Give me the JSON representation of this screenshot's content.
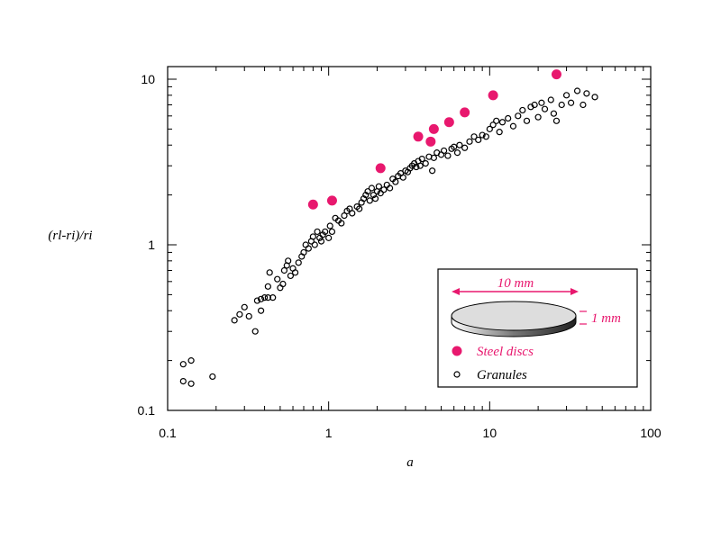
{
  "chart_data": {
    "type": "scatter",
    "title": "",
    "xlabel": "a",
    "ylabel": "(rl-ri)/ri",
    "xscale": "log",
    "yscale": "log",
    "xlim": [
      0.1,
      100
    ],
    "ylim": [
      0.1,
      12
    ],
    "x_tick_labels": [
      "0.1",
      "1",
      "10",
      "100"
    ],
    "y_tick_labels": [
      "0.1",
      "1",
      "10"
    ],
    "legend_position": "bottom-right",
    "inset": {
      "diameter_label": "10 mm",
      "thickness_label": "1 mm"
    },
    "colors": {
      "steel": "#e8186e",
      "granules": "#000000",
      "disc_fill": "#dddddd"
    },
    "series": [
      {
        "name": "Steel discs",
        "marker": "filled-circle",
        "points": [
          [
            0.8,
            1.75
          ],
          [
            1.05,
            1.85
          ],
          [
            2.1,
            2.9
          ],
          [
            3.6,
            4.5
          ],
          [
            4.3,
            4.2
          ],
          [
            4.5,
            5.0
          ],
          [
            5.6,
            5.5
          ],
          [
            7.0,
            6.3
          ],
          [
            10.5,
            8.0
          ],
          [
            26.0,
            10.7
          ]
        ]
      },
      {
        "name": "Granules",
        "marker": "open-circle",
        "points": [
          [
            0.125,
            0.19
          ],
          [
            0.14,
            0.2
          ],
          [
            0.125,
            0.15
          ],
          [
            0.14,
            0.145
          ],
          [
            0.19,
            0.16
          ],
          [
            0.26,
            0.35
          ],
          [
            0.28,
            0.38
          ],
          [
            0.3,
            0.42
          ],
          [
            0.32,
            0.37
          ],
          [
            0.35,
            0.3
          ],
          [
            0.36,
            0.46
          ],
          [
            0.38,
            0.47
          ],
          [
            0.38,
            0.4
          ],
          [
            0.4,
            0.48
          ],
          [
            0.42,
            0.56
          ],
          [
            0.42,
            0.48
          ],
          [
            0.43,
            0.68
          ],
          [
            0.45,
            0.48
          ],
          [
            0.48,
            0.62
          ],
          [
            0.5,
            0.55
          ],
          [
            0.52,
            0.58
          ],
          [
            0.53,
            0.7
          ],
          [
            0.55,
            0.75
          ],
          [
            0.56,
            0.8
          ],
          [
            0.58,
            0.65
          ],
          [
            0.6,
            0.72
          ],
          [
            0.62,
            0.68
          ],
          [
            0.65,
            0.78
          ],
          [
            0.68,
            0.85
          ],
          [
            0.7,
            0.9
          ],
          [
            0.72,
            1.0
          ],
          [
            0.75,
            0.95
          ],
          [
            0.78,
            1.05
          ],
          [
            0.8,
            1.12
          ],
          [
            0.82,
            1.0
          ],
          [
            0.85,
            1.2
          ],
          [
            0.88,
            1.1
          ],
          [
            0.9,
            1.05
          ],
          [
            0.92,
            1.15
          ],
          [
            0.95,
            1.2
          ],
          [
            1.0,
            1.1
          ],
          [
            1.02,
            1.3
          ],
          [
            1.05,
            1.2
          ],
          [
            1.1,
            1.45
          ],
          [
            1.15,
            1.4
          ],
          [
            1.2,
            1.35
          ],
          [
            1.25,
            1.5
          ],
          [
            1.3,
            1.6
          ],
          [
            1.35,
            1.65
          ],
          [
            1.4,
            1.55
          ],
          [
            1.5,
            1.7
          ],
          [
            1.55,
            1.65
          ],
          [
            1.6,
            1.8
          ],
          [
            1.65,
            1.9
          ],
          [
            1.7,
            2.0
          ],
          [
            1.75,
            2.1
          ],
          [
            1.8,
            1.85
          ],
          [
            1.85,
            2.2
          ],
          [
            1.9,
            2.0
          ],
          [
            1.95,
            1.9
          ],
          [
            2.0,
            2.1
          ],
          [
            2.05,
            2.25
          ],
          [
            2.1,
            2.05
          ],
          [
            2.2,
            2.15
          ],
          [
            2.3,
            2.3
          ],
          [
            2.4,
            2.2
          ],
          [
            2.5,
            2.5
          ],
          [
            2.6,
            2.4
          ],
          [
            2.7,
            2.6
          ],
          [
            2.8,
            2.7
          ],
          [
            2.9,
            2.55
          ],
          [
            3.0,
            2.8
          ],
          [
            3.1,
            2.75
          ],
          [
            3.2,
            2.9
          ],
          [
            3.3,
            3.0
          ],
          [
            3.4,
            3.1
          ],
          [
            3.5,
            2.95
          ],
          [
            3.6,
            3.2
          ],
          [
            3.7,
            3.0
          ],
          [
            3.8,
            3.3
          ],
          [
            4.0,
            3.1
          ],
          [
            4.2,
            3.4
          ],
          [
            4.4,
            2.8
          ],
          [
            4.5,
            3.35
          ],
          [
            4.7,
            3.6
          ],
          [
            5.0,
            3.5
          ],
          [
            5.2,
            3.7
          ],
          [
            5.5,
            3.45
          ],
          [
            5.8,
            3.8
          ],
          [
            6.0,
            3.9
          ],
          [
            6.3,
            3.6
          ],
          [
            6.5,
            4.0
          ],
          [
            7.0,
            3.85
          ],
          [
            7.5,
            4.2
          ],
          [
            8.0,
            4.5
          ],
          [
            8.5,
            4.3
          ],
          [
            9.0,
            4.6
          ],
          [
            9.5,
            4.5
          ],
          [
            10.0,
            5.0
          ],
          [
            10.5,
            5.3
          ],
          [
            11.0,
            5.6
          ],
          [
            11.5,
            4.8
          ],
          [
            12.0,
            5.5
          ],
          [
            13.0,
            5.8
          ],
          [
            14.0,
            5.2
          ],
          [
            15.0,
            6.0
          ],
          [
            16.0,
            6.5
          ],
          [
            17.0,
            5.6
          ],
          [
            18.0,
            6.8
          ],
          [
            19.0,
            7.0
          ],
          [
            20.0,
            5.9
          ],
          [
            21.0,
            7.2
          ],
          [
            22.0,
            6.6
          ],
          [
            24.0,
            7.5
          ],
          [
            25.0,
            6.2
          ],
          [
            26.0,
            5.6
          ],
          [
            28.0,
            7.0
          ],
          [
            30.0,
            8.0
          ],
          [
            32.0,
            7.2
          ],
          [
            35.0,
            8.5
          ],
          [
            38.0,
            7.0
          ],
          [
            40.0,
            8.2
          ],
          [
            45.0,
            7.8
          ]
        ]
      }
    ]
  }
}
